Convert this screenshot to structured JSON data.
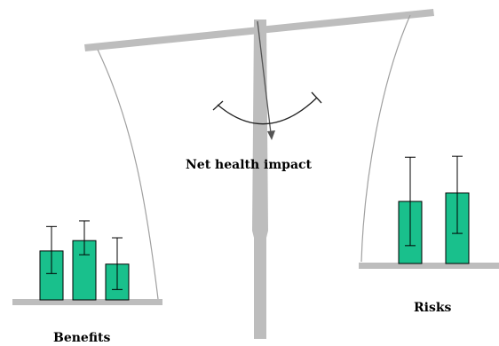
{
  "colors": {
    "beam": "#bdbdbd",
    "pan_outline": "#a0a0a0",
    "bar_fill": "#19c08c",
    "bar_stroke": "#000000",
    "arrow": "#555555",
    "swing_arc": "#222222"
  },
  "labels": {
    "net_impact": "Net health impact",
    "benefits": "Benefits",
    "risks": "Risks"
  },
  "chart_data": [
    {
      "type": "bar",
      "series_role": "benefits",
      "values": [
        0.52,
        0.63,
        0.38
      ],
      "error_low": [
        0.28,
        0.48,
        0.11
      ],
      "error_high": [
        0.78,
        0.84,
        0.66
      ]
    },
    {
      "type": "bar",
      "series_role": "risks",
      "values": [
        0.66,
        0.75
      ],
      "error_low": [
        0.19,
        0.32
      ],
      "error_high": [
        1.13,
        1.14
      ]
    }
  ]
}
